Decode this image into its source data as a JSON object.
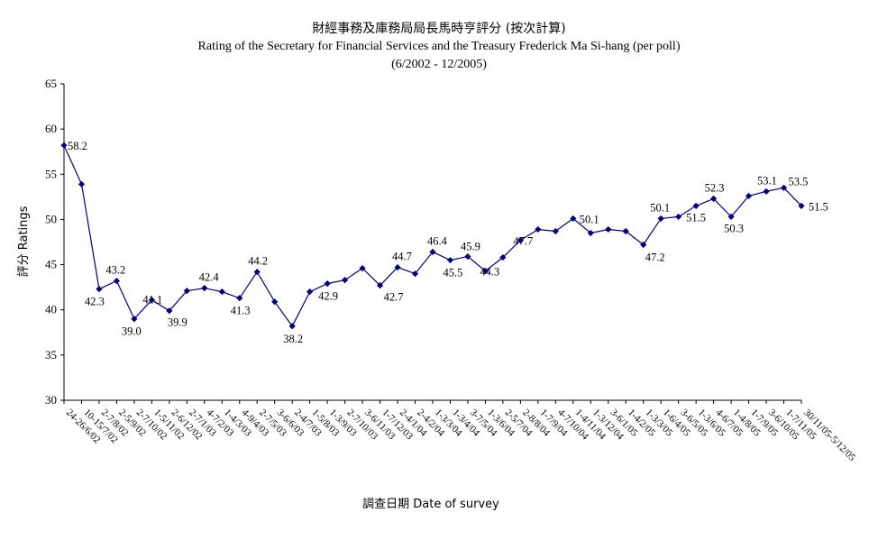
{
  "chart_data": {
    "type": "line",
    "title": "財經事務及庫務局局長馬時亨評分 (按次計算)",
    "subtitle": "Rating of the Secretary for Financial Services and the Treasury Frederick Ma Si-hang  (per poll)",
    "subtitle2": "(6/2002 - 12/2005)",
    "xlabel": "調查日期 Date of survey",
    "ylabel": "評分 Ratings",
    "ylim": [
      30,
      65
    ],
    "yticks": [
      30,
      35,
      40,
      45,
      50,
      55,
      60,
      65
    ],
    "grid": false,
    "legend": "none",
    "line_color": "#000080",
    "categories": [
      "24-26/6/02",
      "10-15/7/02",
      "2-7/8/02",
      "2-5/9/02",
      "2-7/10/02",
      "1-5/11/02",
      "2-6/12/02",
      "2-7/1/03",
      "4-7/2/03",
      "1-4/3/03",
      "4-9/4/03",
      "2-7/5/03",
      "3-6/6/03",
      "2-4/7/03",
      "1-5/8/03",
      "1-3/9/03",
      "2-7/10/03",
      "3-6/11/03",
      "1-7/12/03",
      "2-4/1/04",
      "2-4/2/04",
      "1-3/3/04",
      "1-3/4/04",
      "3-7/5/04",
      "1-3/6/04",
      "2-5/7/04",
      "2-8/8/04",
      "1-7/9/04",
      "4-7/10/04",
      "1-4/11/04",
      "1-3/12/04",
      "3-6/1/05",
      "1-4/2/05",
      "1-3/3/05",
      "1-6/4/05",
      "3-6/5/05",
      "1-3/6/05",
      "4-6/7/05",
      "1-4/8/05",
      "1-7/9/05",
      "3-6/10/05",
      "1-7/11/05",
      "30/11/05-5/12/05"
    ],
    "values": [
      58.2,
      53.9,
      42.3,
      43.2,
      39.0,
      41.1,
      39.9,
      42.1,
      42.4,
      42.0,
      41.3,
      44.2,
      40.9,
      38.2,
      42.0,
      42.9,
      43.3,
      44.6,
      42.7,
      44.7,
      44.0,
      46.4,
      45.5,
      45.9,
      44.3,
      45.8,
      47.7,
      48.9,
      48.7,
      50.1,
      48.5,
      48.9,
      48.7,
      47.2,
      50.1,
      50.3,
      51.5,
      52.3,
      50.3,
      52.6,
      53.1,
      53.5,
      51.5
    ],
    "data_labels": [
      {
        "i": 0,
        "text": "58.2"
      },
      {
        "i": 2,
        "text": "42.3"
      },
      {
        "i": 3,
        "text": "43.2"
      },
      {
        "i": 4,
        "text": "39.0"
      },
      {
        "i": 5,
        "text": "41.1"
      },
      {
        "i": 6,
        "text": "39.9"
      },
      {
        "i": 8,
        "text": "42.4"
      },
      {
        "i": 10,
        "text": "41.3"
      },
      {
        "i": 11,
        "text": "44.2"
      },
      {
        "i": 13,
        "text": "38.2"
      },
      {
        "i": 15,
        "text": "42.9"
      },
      {
        "i": 18,
        "text": "42.7"
      },
      {
        "i": 19,
        "text": "44.7"
      },
      {
        "i": 21,
        "text": "46.4"
      },
      {
        "i": 22,
        "text": "45.5"
      },
      {
        "i": 23,
        "text": "45.9"
      },
      {
        "i": 24,
        "text": "44.3"
      },
      {
        "i": 26,
        "text": "47.7"
      },
      {
        "i": 29,
        "text": "50.1"
      },
      {
        "i": 33,
        "text": "47.2"
      },
      {
        "i": 34,
        "text": "50.1"
      },
      {
        "i": 36,
        "text": "51.5"
      },
      {
        "i": 37,
        "text": "52.3"
      },
      {
        "i": 38,
        "text": "50.3"
      },
      {
        "i": 40,
        "text": "53.1"
      },
      {
        "i": 41,
        "text": "53.5"
      },
      {
        "i": 42,
        "text": "51.5"
      }
    ]
  }
}
